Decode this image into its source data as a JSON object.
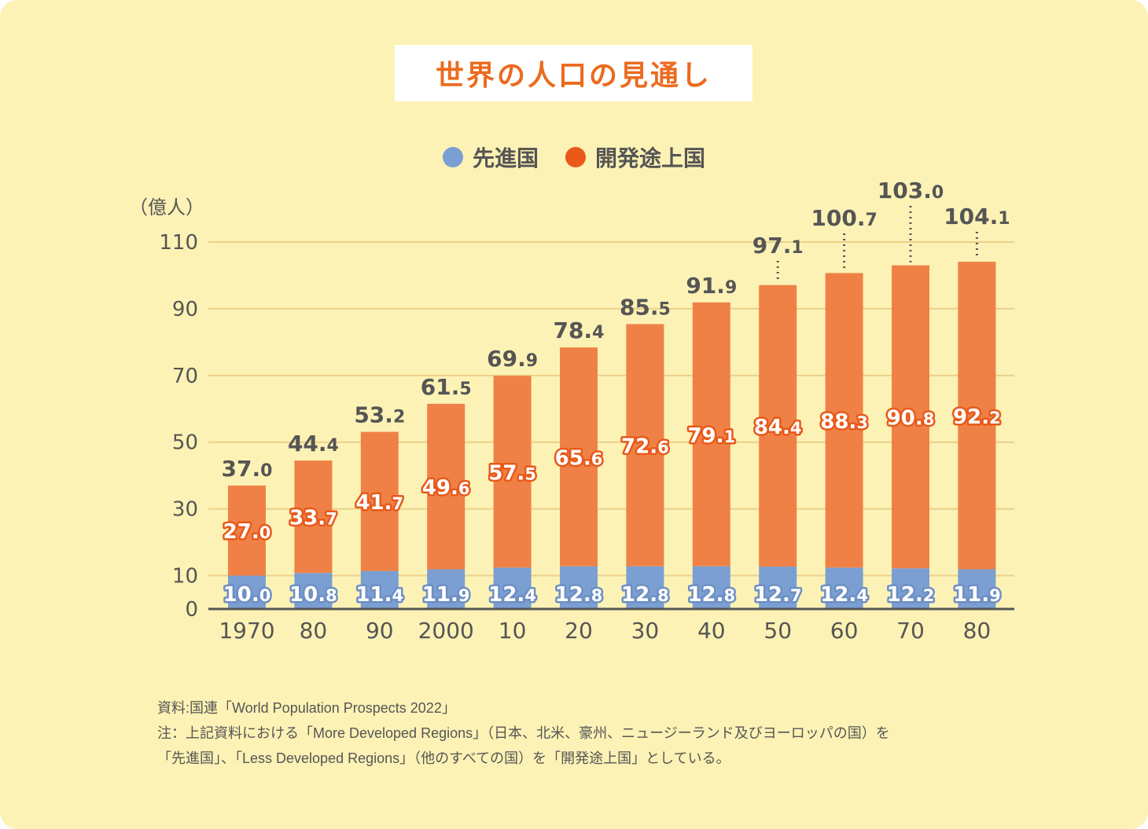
{
  "chart_data": {
    "type": "bar",
    "stacked": true,
    "title": "世界の人口の見通し",
    "ylabel": "（億人）",
    "ylim": [
      0,
      110
    ],
    "yticks": [
      0,
      10,
      30,
      50,
      70,
      90,
      110
    ],
    "grid": true,
    "legend_position": "top-center",
    "categories": [
      "1970",
      "80",
      "90",
      "2000",
      "10",
      "20",
      "30",
      "40",
      "50",
      "60",
      "70",
      "80"
    ],
    "series": [
      {
        "name": "先進国",
        "color": "#7b9fd2",
        "values": [
          10.0,
          10.8,
          11.4,
          11.9,
          12.4,
          12.8,
          12.8,
          12.8,
          12.7,
          12.4,
          12.2,
          11.9
        ]
      },
      {
        "name": "開発途上国",
        "color": "#ef8146",
        "values": [
          27.0,
          33.7,
          41.7,
          49.6,
          57.5,
          65.6,
          72.6,
          79.1,
          84.4,
          88.3,
          90.8,
          92.2
        ]
      }
    ],
    "totals": [
      37.0,
      44.4,
      53.2,
      61.5,
      69.9,
      78.4,
      85.5,
      91.9,
      97.1,
      100.7,
      103.0,
      104.1
    ]
  },
  "legend": {
    "developed": "先進国",
    "developing": "開発途上国",
    "developing_dot_color": "#e8591a"
  },
  "notes": {
    "source": "資料:国連「World Population Prospects 2022」",
    "note1": "注：上記資料における「More Developed Regions」（日本、北米、豪州、ニュージーランド及びヨーロッパの国）を",
    "note2": "「先進国」、「Less Developed Regions」（他のすべての国）を「開発途上国」としている。"
  }
}
